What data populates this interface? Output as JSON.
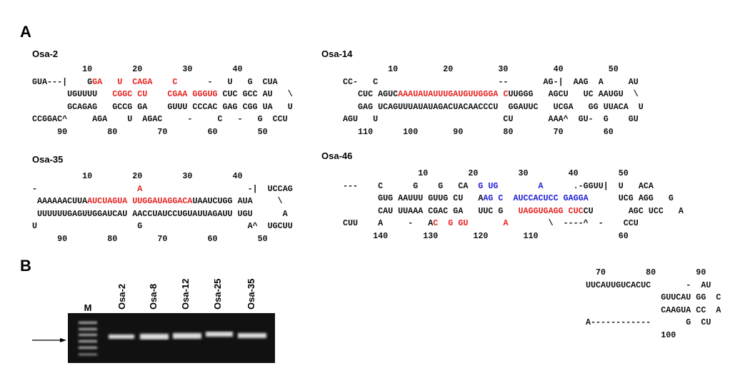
{
  "panel_a": {
    "label": "A",
    "structures": [
      {
        "name": "Osa-2",
        "lines": [
          [
            {
              "text": "          10        20        30        40"
            }
          ],
          [
            {
              "text": "GUA---|    G"
            },
            {
              "text": "GA   U  CAGA    C",
              "color": "#e52421"
            },
            {
              "text": "      -   U   G  CUA"
            }
          ],
          [
            {
              "text": "       UGUUUU   "
            },
            {
              "text": "CGGC CU    CGAA GGGUG",
              "color": "#e52421"
            },
            {
              "text": " CUC GCC AU   \\"
            }
          ],
          [
            {
              "text": "       GCAGAG   GCCG GA    GUUU CCCAC GAG CGG UA   U"
            }
          ],
          [
            {
              "text": "CCGGAC^     AGA    U  AGAC     -     C   -   G  CCU"
            }
          ],
          [
            {
              "text": "     90        80        70        60        50"
            }
          ]
        ]
      },
      {
        "name": "Osa-14",
        "lines": [
          [
            {
              "text": "         10         20         30         40         50"
            }
          ],
          [
            {
              "text": "CC-   C                        --       AG-|  AAG  A     AU"
            }
          ],
          [
            {
              "text": "   CUC AGUC"
            },
            {
              "text": "AAAUAUAUUUGAUGUUGGGA C",
              "color": "#e52421"
            },
            {
              "text": "UUGGG   AGCU   UC AAUGU  \\"
            }
          ],
          [
            {
              "text": "   GAG UCAGUUUAUAUAGACUACAACCCU  GGAUUC   UCGA   GG UUACA  U"
            }
          ],
          [
            {
              "text": "AGU   U                         CU       AAA^  GU-  G    GU"
            }
          ],
          [
            {
              "text": "   110      100       90        80        70        60"
            }
          ]
        ]
      },
      {
        "name": "Osa-35",
        "lines": [
          [
            {
              "text": "          10        20        30        40"
            }
          ],
          [
            {
              "text": "-                    "
            },
            {
              "text": "A",
              "color": "#e52421"
            },
            {
              "text": "                     -|  UCCAG"
            }
          ],
          [
            {
              "text": " AAAAAACUUA"
            },
            {
              "text": "AUCUAGUA UUGGAUAGGACA",
              "color": "#e52421"
            },
            {
              "text": "UAAUCUGG AUA     \\"
            }
          ],
          [
            {
              "text": " UUUUUUGAGUUGGAUCAU AACCUAUCCUGUAUUAGAUU UGU      A"
            }
          ],
          [
            {
              "text": "U                    G                     A^  UGCUU"
            }
          ],
          [
            {
              "text": "     90        80        70        60        50"
            }
          ]
        ]
      },
      {
        "name": "Osa-46",
        "lines": [
          [
            {
              "text": "               10        20        30        40        50"
            }
          ],
          [
            {
              "text": "---    C      G    G   CA  "
            },
            {
              "text": "G UG        A",
              "color": "#1f1fd6"
            },
            {
              "text": "      .-GGUU|  U   ACA"
            }
          ],
          [
            {
              "text": "       GUG AAUUU GUUG CU   A"
            },
            {
              "text": "AG C  AUCCACUCC GAGGA",
              "color": "#1f1fd6"
            },
            {
              "text": "      UCG AGG   G"
            }
          ],
          [
            {
              "text": "       CAU UUAAA CGAC GA   UUC G   "
            },
            {
              "text": "UAGGUGAGG CUC",
              "color": "#e52421"
            },
            {
              "text": "CU       AGC UCC   A"
            }
          ],
          [
            {
              "text": "CUU    A     -   A"
            },
            {
              "text": "C  G GU       A",
              "color": "#e52421"
            },
            {
              "text": "        \\  ----^  -    CCU"
            }
          ],
          [
            {
              "text": "      140       130       120       110                60"
            }
          ]
        ]
      }
    ]
  },
  "panel_b": {
    "label": "B",
    "lanes": [
      "M",
      "Osa-2",
      "Osa-8",
      "Osa-12",
      "Osa-25",
      "Osa-35"
    ]
  },
  "extra_structure": {
    "lines": [
      [
        {
          "text": "  70        80        90"
        }
      ],
      [
        {
          "text": "UUCAUUGUCACUC       -  AU"
        }
      ],
      [
        {
          "text": "               GUUCAU GG  C"
        }
      ],
      [
        {
          "text": "               CAAGUA CC  A"
        }
      ],
      [
        {
          "text": "A------------       G  CU"
        }
      ],
      [
        {
          "text": "               100"
        }
      ]
    ]
  }
}
